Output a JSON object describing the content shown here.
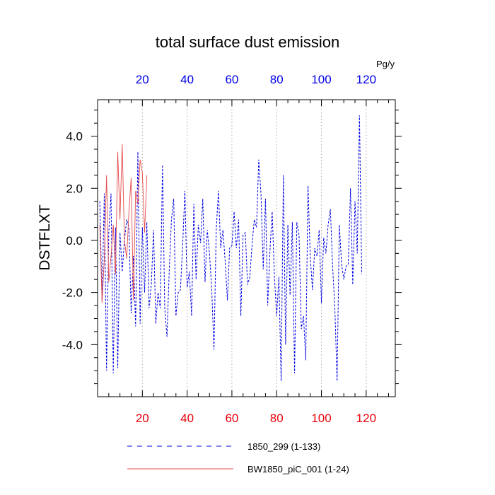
{
  "chart_data": {
    "type": "line",
    "title": "total surface dust emission",
    "ylabel": "DSTFLXT",
    "units_label": "Pg/y",
    "xlim": [
      0,
      133
    ],
    "ylim": [
      -6.0,
      5.4
    ],
    "x_ticks": [
      20,
      40,
      60,
      80,
      100,
      120
    ],
    "x_tick_labels": [
      "20",
      "40",
      "60",
      "80",
      "100",
      "120"
    ],
    "y_ticks": [
      -4.0,
      -2.0,
      0.0,
      2.0,
      4.0
    ],
    "y_tick_labels": [
      "-4.0",
      "-2.0",
      "0.0",
      "2.0",
      "4.0"
    ],
    "grid": "vertical dotted at major x ticks",
    "legend_position": "bottom",
    "series": [
      {
        "name": "1850_299 (1-133)",
        "color": "#0000e6",
        "style": "dashed",
        "values": [
          1.5,
          -2.3,
          1.8,
          -5.0,
          0.3,
          1.8,
          -5.1,
          0.5,
          -4.9,
          0.3,
          -1.2,
          0.0,
          0.8,
          0.5,
          -2.8,
          -0.6,
          -3.3,
          3.4,
          -3.2,
          0.5,
          -2.0,
          0.7,
          -2.6,
          -1.7,
          0.4,
          -3.2,
          -2.0,
          -2.6,
          2.9,
          -2.6,
          -3.7,
          -1.2,
          0.8,
          1.6,
          -2.9,
          -2.0,
          -1.9,
          -0.2,
          1.9,
          -1.8,
          -1.2,
          -2.9,
          1.4,
          -1.5,
          0.6,
          -0.1,
          1.6,
          -1.6,
          0.4,
          -0.5,
          -1.9,
          -4.2,
          0.4,
          1.9,
          -0.3,
          0.4,
          -0.8,
          -2.3,
          -0.3,
          -0.2,
          1.1,
          -0.3,
          0.8,
          -2.9,
          0.2,
          0.3,
          -1.7,
          -1.4,
          -0.2,
          0.8,
          0.5,
          3.1,
          1.8,
          -1.1,
          1.6,
          -2.5,
          -0.4,
          1.1,
          -1.4,
          -2.9,
          -1.4,
          -5.4,
          2.5,
          -4.0,
          0.6,
          -2.1,
          0.7,
          -5.1,
          0.7,
          0.2,
          -3.4,
          -2.9,
          -4.6,
          2.1,
          -0.6,
          -1.9,
          -0.3,
          -0.6,
          0.4,
          -2.4,
          0.1,
          -0.5,
          0.6,
          1.2,
          -1.0,
          -2.6,
          -5.4,
          0.6,
          -0.9,
          -1.5,
          -1.0,
          -0.9,
          2.0,
          -1.7,
          1.5,
          -0.5,
          4.8,
          -1.3
        ]
      },
      {
        "name": "BW1850_piC_001 (1-24)",
        "color": "#e64b4b",
        "style": "solid",
        "values": [
          0.6,
          -2.4,
          -0.7,
          2.5,
          -1.6,
          -0.6,
          0.6,
          -1.3,
          3.4,
          0.8,
          3.7,
          0.0,
          -0.7,
          1.1,
          2.4,
          -2.3,
          1.9,
          1.4,
          3.1,
          2.6,
          0.3,
          2.5
        ]
      }
    ]
  }
}
